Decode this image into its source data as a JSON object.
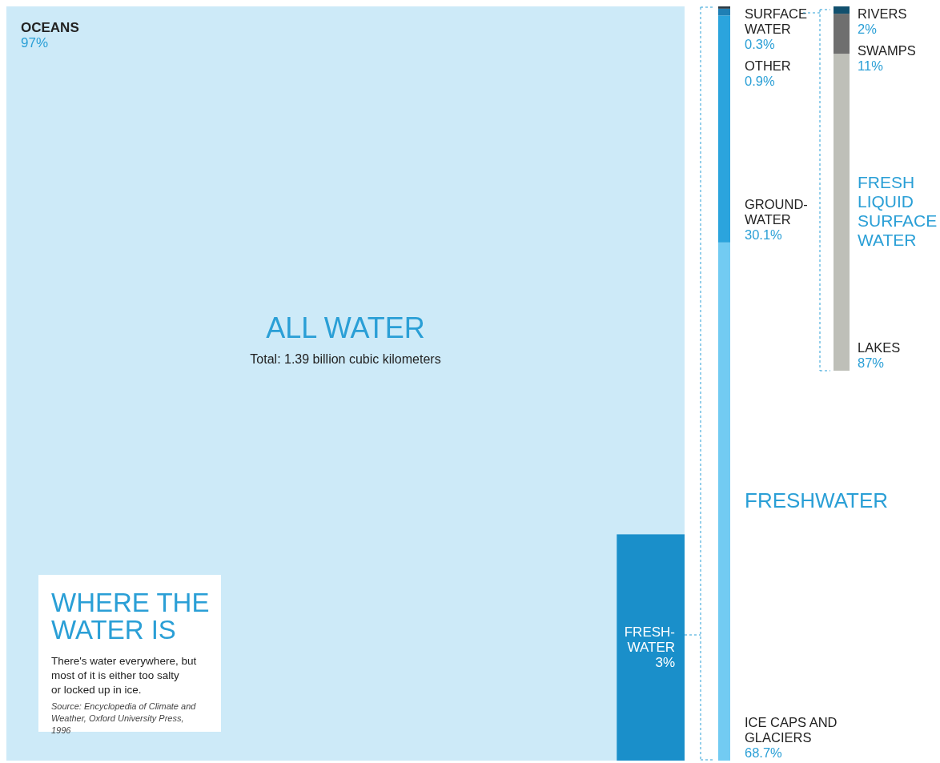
{
  "chart_data": [
    {
      "type": "other",
      "title": "ALL WATER",
      "subtitle": "Total: 1.39 billion cubic kilometers",
      "categories": [
        "OCEANS",
        "FRESH-WATER"
      ],
      "values": [
        97,
        3
      ],
      "value_labels": [
        "97%",
        "3%"
      ],
      "colors": [
        "#cdeaf8",
        "#1a8fca"
      ],
      "annotations": [
        "WHERE THE WATER IS",
        "There's water everywhere, but most of it is either too salty or locked up in ice.",
        "Source: Encyclopedia of Climate and Weather, Oxford University Press, 1996"
      ]
    },
    {
      "type": "other",
      "title": "FRESHWATER",
      "categories": [
        "SURFACE WATER",
        "OTHER",
        "GROUND-WATER",
        "ICE CAPS AND GLACIERS"
      ],
      "values": [
        0.3,
        0.9,
        30.1,
        68.7
      ],
      "value_labels": [
        "0.3%",
        "0.9%",
        "30.1%",
        "68.7%"
      ],
      "colors": [
        "#2b3a44",
        "#1f7fb5",
        "#2ba4dd",
        "#72cbf2"
      ]
    },
    {
      "type": "other",
      "title": "FRESH LIQUID SURFACE WATER",
      "categories": [
        "RIVERS",
        "SWAMPS",
        "LAKES"
      ],
      "values": [
        2,
        11,
        87
      ],
      "value_labels": [
        "2%",
        "11%",
        "87%"
      ],
      "colors": [
        "#12506e",
        "#6f6f6f",
        "#bebfb8"
      ]
    }
  ]
}
